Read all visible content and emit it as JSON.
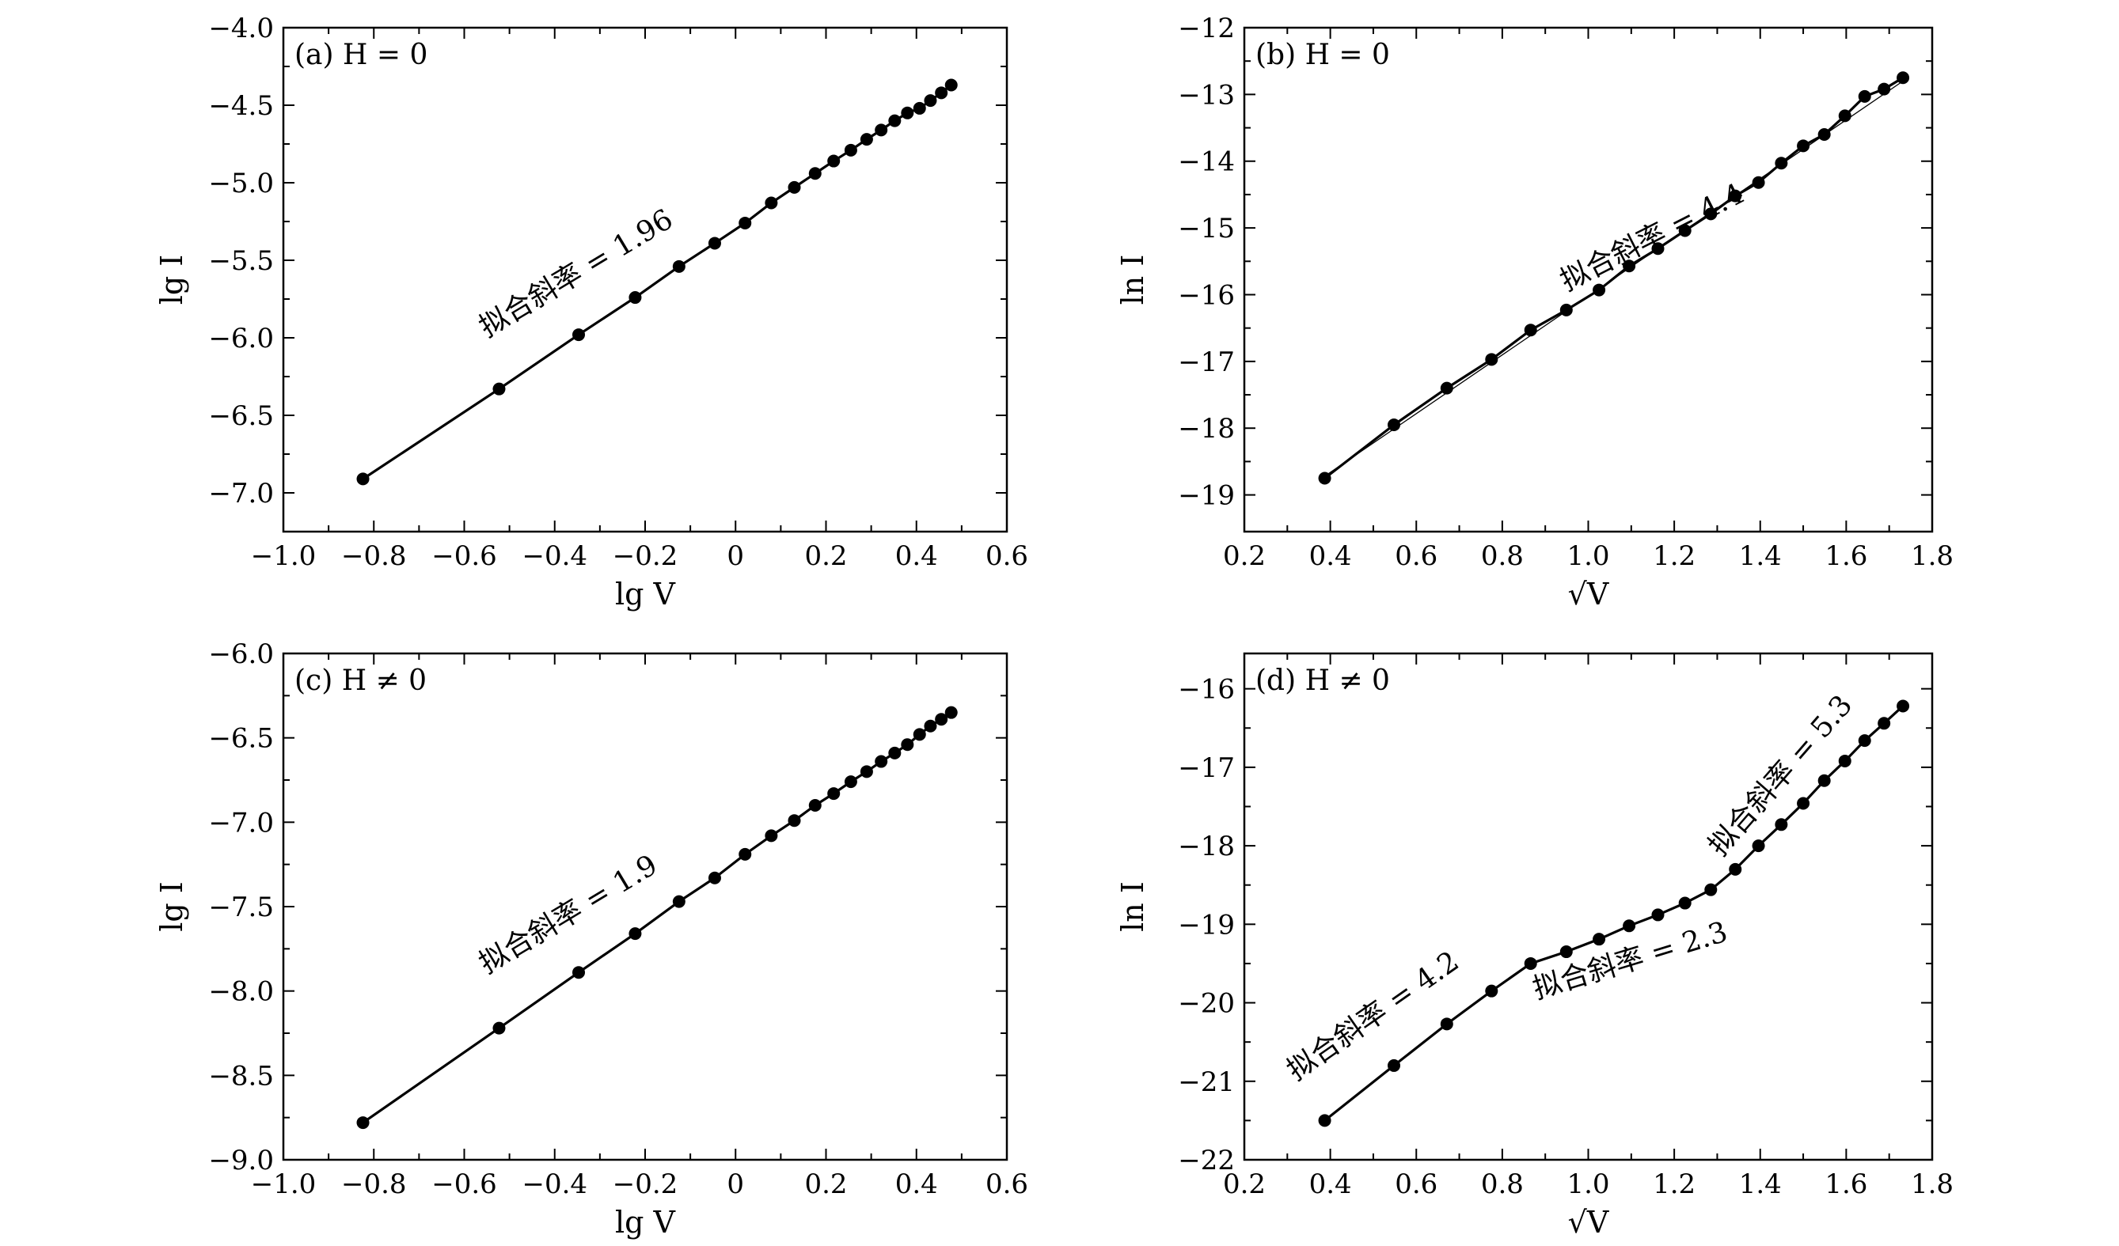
{
  "chart_data": [
    {
      "id": "a",
      "type": "line",
      "panel_label": "(a) H = 0",
      "panel_tag": "(a)",
      "panel_condition": "H = 0",
      "xlabel": "lg V",
      "ylabel": "lg I",
      "xlim": [
        -1.0,
        0.6
      ],
      "ylim": [
        -7.25,
        -4.0
      ],
      "xticks": [
        -1.0,
        -0.8,
        -0.6,
        -0.4,
        -0.2,
        0,
        0.2,
        0.4,
        0.6
      ],
      "xtick_labels": [
        "−1.0",
        "−0.8",
        "−0.6",
        "−0.4",
        "−0.2",
        "0",
        "0.2",
        "0.4",
        "0.6"
      ],
      "yticks": [
        -7.0,
        -6.5,
        -6.0,
        -5.5,
        -5.0,
        -4.5,
        -4.0
      ],
      "ytick_labels": [
        "−7.0",
        "−6.5",
        "−6.0",
        "−5.5",
        "−5.0",
        "−4.5",
        "−4.0"
      ],
      "series": [
        {
          "name": "data",
          "x": [
            -0.824,
            -0.523,
            -0.347,
            -0.222,
            -0.125,
            -0.046,
            0.021,
            0.079,
            0.13,
            0.176,
            0.217,
            0.255,
            0.29,
            0.322,
            0.352,
            0.38,
            0.407,
            0.431,
            0.455,
            0.477
          ],
          "y": [
            -6.91,
            -6.33,
            -5.98,
            -5.74,
            -5.54,
            -5.39,
            -5.26,
            -5.13,
            -5.03,
            -4.94,
            -4.86,
            -4.79,
            -4.72,
            -4.66,
            -4.6,
            -4.55,
            -4.52,
            -4.47,
            -4.42,
            -4.37
          ]
        }
      ],
      "annotations": [
        {
          "text": "拟合斜率 = 1.96",
          "x": -0.55,
          "y": -6.0
        }
      ]
    },
    {
      "id": "b",
      "type": "line",
      "panel_label": "(b) H = 0",
      "panel_tag": "(b)",
      "panel_condition": "H = 0",
      "xlabel": "√V",
      "ylabel": "ln I",
      "xlim": [
        0.2,
        1.8
      ],
      "ylim": [
        -19.55,
        -12.0
      ],
      "xticks": [
        0.2,
        0.4,
        0.6,
        0.8,
        1.0,
        1.2,
        1.4,
        1.6,
        1.8
      ],
      "xtick_labels": [
        "0.2",
        "0.4",
        "0.6",
        "0.8",
        "1.0",
        "1.2",
        "1.4",
        "1.6",
        "1.8"
      ],
      "yticks": [
        -19,
        -18,
        -17,
        -16,
        -15,
        -14,
        -13,
        -12
      ],
      "ytick_labels": [
        "−19",
        "−18",
        "−17",
        "−16",
        "−15",
        "−14",
        "−13",
        "−12"
      ],
      "series": [
        {
          "name": "data",
          "x": [
            0.387,
            0.548,
            0.671,
            0.775,
            0.866,
            0.949,
            1.025,
            1.095,
            1.162,
            1.225,
            1.285,
            1.342,
            1.396,
            1.449,
            1.5,
            1.549,
            1.597,
            1.643,
            1.688,
            1.732
          ],
          "y": [
            -18.75,
            -17.95,
            -17.4,
            -16.97,
            -16.53,
            -16.23,
            -15.93,
            -15.57,
            -15.31,
            -15.04,
            -14.79,
            -14.52,
            -14.32,
            -14.03,
            -13.77,
            -13.6,
            -13.32,
            -13.03,
            -12.92,
            -12.75
          ]
        },
        {
          "name": "linear fit",
          "x": [
            0.387,
            1.732
          ],
          "y": [
            -18.72,
            -12.8
          ]
        }
      ],
      "annotations": [
        {
          "text": "拟合斜率 = 4.4",
          "x": 0.95,
          "y": -15.95
        }
      ]
    },
    {
      "id": "c",
      "type": "line",
      "panel_label": "(c) H ≠ 0",
      "panel_tag": "(c)",
      "panel_condition": "H ≠ 0",
      "xlabel": "lg V",
      "ylabel": "lg I",
      "xlim": [
        -1.0,
        0.6
      ],
      "ylim": [
        -9.0,
        -6.0
      ],
      "xticks": [
        -1.0,
        -0.8,
        -0.6,
        -0.4,
        -0.2,
        0,
        0.2,
        0.4,
        0.6
      ],
      "xtick_labels": [
        "−1.0",
        "−0.8",
        "−0.6",
        "−0.4",
        "−0.2",
        "0",
        "0.2",
        "0.4",
        "0.6"
      ],
      "yticks": [
        -9.0,
        -8.5,
        -8.0,
        -7.5,
        -7.0,
        -6.5,
        -6.0
      ],
      "ytick_labels": [
        "−9.0",
        "−8.5",
        "−8.0",
        "−7.5",
        "−7.0",
        "−6.5",
        "−6.0"
      ],
      "series": [
        {
          "name": "data",
          "x": [
            -0.824,
            -0.523,
            -0.347,
            -0.222,
            -0.125,
            -0.046,
            0.021,
            0.079,
            0.13,
            0.176,
            0.217,
            0.255,
            0.29,
            0.322,
            0.352,
            0.38,
            0.407,
            0.431,
            0.455,
            0.477
          ],
          "y": [
            -8.78,
            -8.22,
            -7.89,
            -7.66,
            -7.47,
            -7.33,
            -7.19,
            -7.08,
            -6.99,
            -6.9,
            -6.83,
            -6.76,
            -6.7,
            -6.64,
            -6.59,
            -6.54,
            -6.48,
            -6.43,
            -6.39,
            -6.35
          ]
        }
      ],
      "annotations": [
        {
          "text": "拟合斜率 = 1.9",
          "x": -0.55,
          "y": -7.9
        }
      ]
    },
    {
      "id": "d",
      "type": "line",
      "panel_label": "(d) H ≠ 0",
      "panel_tag": "(d)",
      "panel_condition": "H ≠ 0",
      "xlabel": "√V",
      "ylabel": "ln I",
      "xlim": [
        0.2,
        1.8
      ],
      "ylim": [
        -22.0,
        -15.55
      ],
      "xticks": [
        0.2,
        0.4,
        0.6,
        0.8,
        1.0,
        1.2,
        1.4,
        1.6,
        1.8
      ],
      "xtick_labels": [
        "0.2",
        "0.4",
        "0.6",
        "0.8",
        "1.0",
        "1.2",
        "1.4",
        "1.6",
        "1.8"
      ],
      "yticks": [
        -22,
        -21,
        -20,
        -19,
        -18,
        -17,
        -16
      ],
      "ytick_labels": [
        "−22",
        "−21",
        "−20",
        "−19",
        "−18",
        "−17",
        "−16"
      ],
      "series": [
        {
          "name": "data",
          "x": [
            0.387,
            0.548,
            0.671,
            0.775,
            0.866,
            0.949,
            1.025,
            1.095,
            1.162,
            1.225,
            1.285,
            1.342,
            1.396,
            1.449,
            1.5,
            1.549,
            1.597,
            1.643,
            1.688,
            1.732
          ],
          "y": [
            -21.5,
            -20.8,
            -20.27,
            -19.85,
            -19.5,
            -19.35,
            -19.19,
            -19.02,
            -18.88,
            -18.73,
            -18.56,
            -18.3,
            -18.0,
            -17.73,
            -17.46,
            -17.17,
            -16.92,
            -16.66,
            -16.44,
            -16.22
          ]
        }
      ],
      "annotations": [
        {
          "text": "拟合斜率 = 4.2",
          "x": 0.32,
          "y": -21.0
        },
        {
          "text": "拟合斜率 = 2.3",
          "x": 0.88,
          "y": -19.95
        },
        {
          "text": "拟合斜率 = 5.3",
          "x": 1.31,
          "y": -18.15
        }
      ]
    }
  ]
}
